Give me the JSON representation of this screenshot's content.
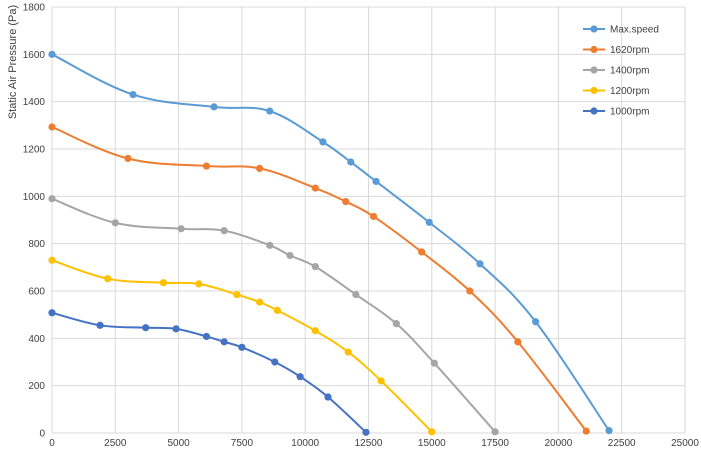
{
  "chart_data": {
    "type": "line",
    "title": "",
    "xlabel": "",
    "ylabel": "Static Air Pressure  (Pa)",
    "xlim": [
      0,
      25000
    ],
    "ylim": [
      0,
      1800
    ],
    "x_ticks": [
      0,
      2500,
      5000,
      7500,
      10000,
      12500,
      15000,
      17500,
      20000,
      22500,
      25000
    ],
    "y_ticks": [
      0,
      200,
      400,
      600,
      800,
      1000,
      1200,
      1400,
      1600,
      1800
    ],
    "x_tick_labels": [
      "0",
      "2500",
      "5000",
      "7500",
      "10000",
      "12500",
      "15000",
      "17500",
      "20000",
      "22500",
      "25000"
    ],
    "y_tick_labels": [
      "0",
      "200",
      "400",
      "600",
      "800",
      "1000",
      "1200",
      "1400",
      "1600",
      "1800"
    ],
    "grid": true,
    "legend_position": "top-right",
    "series": [
      {
        "name": "Max.speed",
        "color": "#5b9bd5",
        "points": [
          [
            0,
            1600
          ],
          [
            3200,
            1430
          ],
          [
            6400,
            1378
          ],
          [
            8600,
            1360
          ],
          [
            10700,
            1230
          ],
          [
            11800,
            1145
          ],
          [
            12800,
            1063
          ],
          [
            14900,
            890
          ],
          [
            16900,
            715
          ],
          [
            19100,
            470
          ],
          [
            22000,
            10
          ]
        ]
      },
      {
        "name": "1620rpm",
        "color": "#ed7d31",
        "points": [
          [
            0,
            1293
          ],
          [
            3000,
            1160
          ],
          [
            6100,
            1128
          ],
          [
            8200,
            1118
          ],
          [
            10400,
            1035
          ],
          [
            11600,
            978
          ],
          [
            12700,
            915
          ],
          [
            14600,
            765
          ],
          [
            16500,
            600
          ],
          [
            18400,
            385
          ],
          [
            21100,
            8
          ]
        ]
      },
      {
        "name": "1400rpm",
        "color": "#a5a5a5",
        "points": [
          [
            0,
            990
          ],
          [
            2500,
            888
          ],
          [
            5100,
            863
          ],
          [
            6800,
            855
          ],
          [
            8600,
            793
          ],
          [
            9400,
            750
          ],
          [
            10400,
            703
          ],
          [
            12000,
            585
          ],
          [
            13600,
            462
          ],
          [
            15100,
            295
          ],
          [
            17500,
            5
          ]
        ]
      },
      {
        "name": "1200rpm",
        "color": "#ffc000",
        "points": [
          [
            0,
            730
          ],
          [
            2200,
            652
          ],
          [
            4400,
            635
          ],
          [
            5800,
            630
          ],
          [
            7300,
            585
          ],
          [
            8200,
            553
          ],
          [
            8900,
            518
          ],
          [
            10400,
            432
          ],
          [
            11700,
            342
          ],
          [
            13000,
            220
          ],
          [
            15000,
            5
          ]
        ]
      },
      {
        "name": "1000rpm",
        "color": "#4472c4",
        "points": [
          [
            0,
            508
          ],
          [
            1900,
            455
          ],
          [
            3700,
            445
          ],
          [
            4900,
            440
          ],
          [
            6100,
            408
          ],
          [
            6800,
            385
          ],
          [
            7500,
            362
          ],
          [
            8800,
            300
          ],
          [
            9800,
            238
          ],
          [
            10900,
            152
          ],
          [
            12400,
            3
          ]
        ]
      }
    ]
  }
}
